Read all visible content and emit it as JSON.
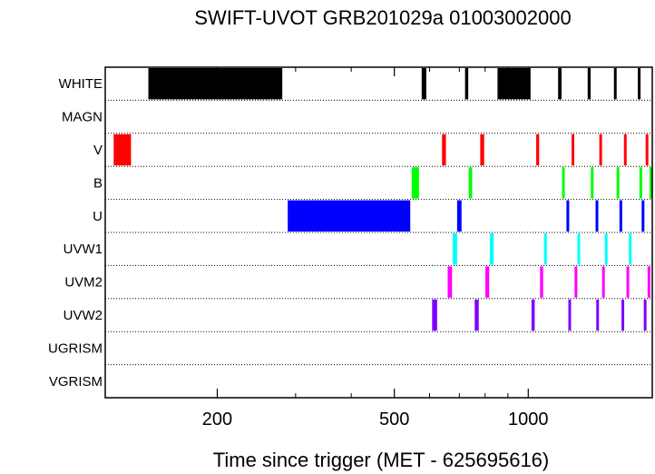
{
  "chart_data": {
    "type": "timeline",
    "title": "SWIFT-UVOT GRB201029a 01003002000",
    "xlabel": "Time since trigger (MET - 625695616)",
    "x_scale": "log",
    "xlim": [
      112,
      1900
    ],
    "x_ticks": [
      {
        "value": 200,
        "label": "200"
      },
      {
        "value": 500,
        "label": "500"
      },
      {
        "value": 1000,
        "label": "1000"
      }
    ],
    "minor_x_ticks": [
      300,
      400,
      600,
      700,
      800,
      900
    ],
    "filters": [
      "WHITE",
      "MAGN",
      "V",
      "B",
      "U",
      "UVW1",
      "UVM2",
      "UVW2",
      "UGRISM",
      "VGRISM"
    ],
    "grid": "dotted row separators",
    "exposures": [
      {
        "filter": "WHITE",
        "color": "#000000",
        "start": 140,
        "end": 280
      },
      {
        "filter": "WHITE",
        "color": "#000000",
        "start": 576,
        "end": 590
      },
      {
        "filter": "WHITE",
        "color": "#000000",
        "start": 721,
        "end": 733
      },
      {
        "filter": "WHITE",
        "color": "#000000",
        "start": 853,
        "end": 1012
      },
      {
        "filter": "WHITE",
        "color": "#000000",
        "start": 1167,
        "end": 1188
      },
      {
        "filter": "WHITE",
        "color": "#000000",
        "start": 1360,
        "end": 1381
      },
      {
        "filter": "WHITE",
        "color": "#000000",
        "start": 1558,
        "end": 1580
      },
      {
        "filter": "WHITE",
        "color": "#000000",
        "start": 1767,
        "end": 1788
      },
      {
        "filter": "V",
        "color": "#ff0000",
        "start": 117,
        "end": 128
      },
      {
        "filter": "V",
        "color": "#ff0000",
        "start": 640,
        "end": 653
      },
      {
        "filter": "V",
        "color": "#ff0000",
        "start": 780,
        "end": 796
      },
      {
        "filter": "V",
        "color": "#ff0000",
        "start": 1042,
        "end": 1058
      },
      {
        "filter": "V",
        "color": "#ff0000",
        "start": 1253,
        "end": 1269
      },
      {
        "filter": "V",
        "color": "#ff0000",
        "start": 1448,
        "end": 1465
      },
      {
        "filter": "V",
        "color": "#ff0000",
        "start": 1646,
        "end": 1664
      },
      {
        "filter": "V",
        "color": "#ff0000",
        "start": 1843,
        "end": 1862
      },
      {
        "filter": "B",
        "color": "#00ff00",
        "start": 547,
        "end": 568
      },
      {
        "filter": "B",
        "color": "#00ff00",
        "start": 735,
        "end": 748
      },
      {
        "filter": "B",
        "color": "#00ff00",
        "start": 1192,
        "end": 1208
      },
      {
        "filter": "B",
        "color": "#00ff00",
        "start": 1385,
        "end": 1402
      },
      {
        "filter": "B",
        "color": "#00ff00",
        "start": 1584,
        "end": 1602
      },
      {
        "filter": "B",
        "color": "#00ff00",
        "start": 1784,
        "end": 1803
      },
      {
        "filter": "B",
        "color": "#00ff00",
        "start": 1900,
        "end": 1900
      },
      {
        "filter": "U",
        "color": "#0000ff",
        "start": 288,
        "end": 543
      },
      {
        "filter": "U",
        "color": "#0000ff",
        "start": 692,
        "end": 708
      },
      {
        "filter": "U",
        "color": "#0000ff",
        "start": 1219,
        "end": 1236
      },
      {
        "filter": "U",
        "color": "#0000ff",
        "start": 1419,
        "end": 1437
      },
      {
        "filter": "U",
        "color": "#0000ff",
        "start": 1608,
        "end": 1626
      },
      {
        "filter": "U",
        "color": "#0000ff",
        "start": 1805,
        "end": 1824
      },
      {
        "filter": "UVW1",
        "color": "#00ffff",
        "start": 676,
        "end": 692
      },
      {
        "filter": "UVW1",
        "color": "#00ffff",
        "start": 820,
        "end": 836
      },
      {
        "filter": "UVW1",
        "color": "#00ffff",
        "start": 1085,
        "end": 1101
      },
      {
        "filter": "UVW1",
        "color": "#00ffff",
        "start": 1291,
        "end": 1308
      },
      {
        "filter": "UVW1",
        "color": "#00ffff",
        "start": 1489,
        "end": 1507
      },
      {
        "filter": "UVW1",
        "color": "#00ffff",
        "start": 1688,
        "end": 1707
      },
      {
        "filter": "UVM2",
        "color": "#ff00ff",
        "start": 659,
        "end": 674
      },
      {
        "filter": "UVM2",
        "color": "#ff00ff",
        "start": 801,
        "end": 817
      },
      {
        "filter": "UVM2",
        "color": "#ff00ff",
        "start": 1063,
        "end": 1080
      },
      {
        "filter": "UVM2",
        "color": "#ff00ff",
        "start": 1272,
        "end": 1289
      },
      {
        "filter": "UVM2",
        "color": "#ff00ff",
        "start": 1468,
        "end": 1486
      },
      {
        "filter": "UVM2",
        "color": "#ff00ff",
        "start": 1668,
        "end": 1686
      },
      {
        "filter": "UVM2",
        "color": "#ff00ff",
        "start": 1862,
        "end": 1881
      },
      {
        "filter": "UVW2",
        "color": "#8000ff",
        "start": 608,
        "end": 624
      },
      {
        "filter": "UVW2",
        "color": "#8000ff",
        "start": 758,
        "end": 774
      },
      {
        "filter": "UVW2",
        "color": "#8000ff",
        "start": 1017,
        "end": 1034
      },
      {
        "filter": "UVW2",
        "color": "#8000ff",
        "start": 1232,
        "end": 1248
      },
      {
        "filter": "UVW2",
        "color": "#8000ff",
        "start": 1425,
        "end": 1442
      },
      {
        "filter": "UVW2",
        "color": "#8000ff",
        "start": 1625,
        "end": 1643
      },
      {
        "filter": "UVW2",
        "color": "#8000ff",
        "start": 1826,
        "end": 1844
      }
    ]
  }
}
